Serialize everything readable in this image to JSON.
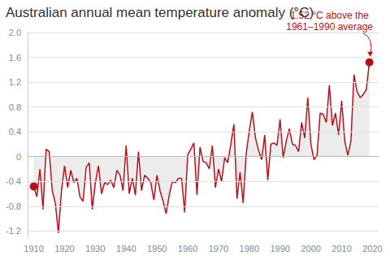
{
  "chart_data": {
    "type": "line",
    "title": "Australian annual mean temperature anomaly (°C)",
    "x": [
      1910,
      1911,
      1912,
      1913,
      1914,
      1915,
      1916,
      1917,
      1918,
      1919,
      1920,
      1921,
      1922,
      1923,
      1924,
      1925,
      1926,
      1927,
      1928,
      1929,
      1930,
      1931,
      1932,
      1933,
      1934,
      1935,
      1936,
      1937,
      1938,
      1939,
      1940,
      1941,
      1942,
      1943,
      1944,
      1945,
      1946,
      1947,
      1948,
      1949,
      1950,
      1951,
      1952,
      1953,
      1954,
      1955,
      1956,
      1957,
      1958,
      1959,
      1960,
      1961,
      1962,
      1963,
      1964,
      1965,
      1966,
      1967,
      1968,
      1969,
      1970,
      1971,
      1972,
      1973,
      1974,
      1975,
      1976,
      1977,
      1978,
      1979,
      1980,
      1981,
      1982,
      1983,
      1984,
      1985,
      1986,
      1987,
      1988,
      1989,
      1990,
      1991,
      1992,
      1993,
      1994,
      1995,
      1996,
      1997,
      1998,
      1999,
      2000,
      2001,
      2002,
      2003,
      2004,
      2005,
      2006,
      2007,
      2008,
      2009,
      2010,
      2011,
      2012,
      2013,
      2014,
      2015,
      2016,
      2017,
      2018,
      2019
    ],
    "values": [
      -0.48,
      -0.65,
      -0.2,
      -0.85,
      0.12,
      0.08,
      -0.55,
      -0.75,
      -1.23,
      -0.55,
      -0.15,
      -0.5,
      -0.22,
      -0.42,
      -0.35,
      -0.65,
      -0.72,
      -0.18,
      -0.1,
      -0.85,
      -0.42,
      -0.15,
      -0.6,
      -0.42,
      -0.45,
      -0.38,
      -0.5,
      -0.22,
      -0.3,
      -0.55,
      0.18,
      -0.6,
      -0.35,
      -0.62,
      0.08,
      -0.55,
      -0.3,
      -0.35,
      -0.42,
      -0.7,
      -0.3,
      -0.55,
      -0.72,
      -0.92,
      -0.62,
      -0.4,
      -0.42,
      -0.35,
      -0.35,
      -0.9,
      0.03,
      0.12,
      0.22,
      -0.62,
      0.15,
      -0.08,
      -0.1,
      -0.2,
      0.18,
      -0.5,
      -0.2,
      -0.4,
      -0.02,
      -0.1,
      0.2,
      0.52,
      -0.68,
      -0.25,
      -0.75,
      0.05,
      0.42,
      0.72,
      0.3,
      0.1,
      -0.05,
      0.35,
      -0.38,
      0.2,
      0.22,
      0.18,
      0.6,
      -0.02,
      0.25,
      0.45,
      0.2,
      0.18,
      0.08,
      0.55,
      0.3,
      0.95,
      0.2,
      -0.05,
      0.02,
      0.7,
      0.68,
      0.55,
      1.15,
      0.5,
      0.7,
      0.35,
      0.9,
      0.25,
      0.02,
      0.25,
      1.32,
      1.05,
      0.95,
      1.0,
      1.08,
      1.52
    ],
    "color": "#b5121b",
    "xlim": [
      1908,
      2022
    ],
    "xticks": [
      1910,
      1920,
      1930,
      1940,
      1950,
      1960,
      1970,
      1980,
      1990,
      2000,
      2010,
      2020
    ],
    "ylim": [
      -1.3,
      2.0
    ],
    "yticks": [
      -1.2,
      -0.8,
      -0.4,
      0,
      0.4,
      0.8,
      1.2,
      1.6,
      {
        "value": 2,
        "label": "2.0"
      }
    ],
    "grid": true,
    "annotation": {
      "x": 2019,
      "lines": [
        "1.52 °C above the",
        "1961–1990 average"
      ]
    }
  }
}
